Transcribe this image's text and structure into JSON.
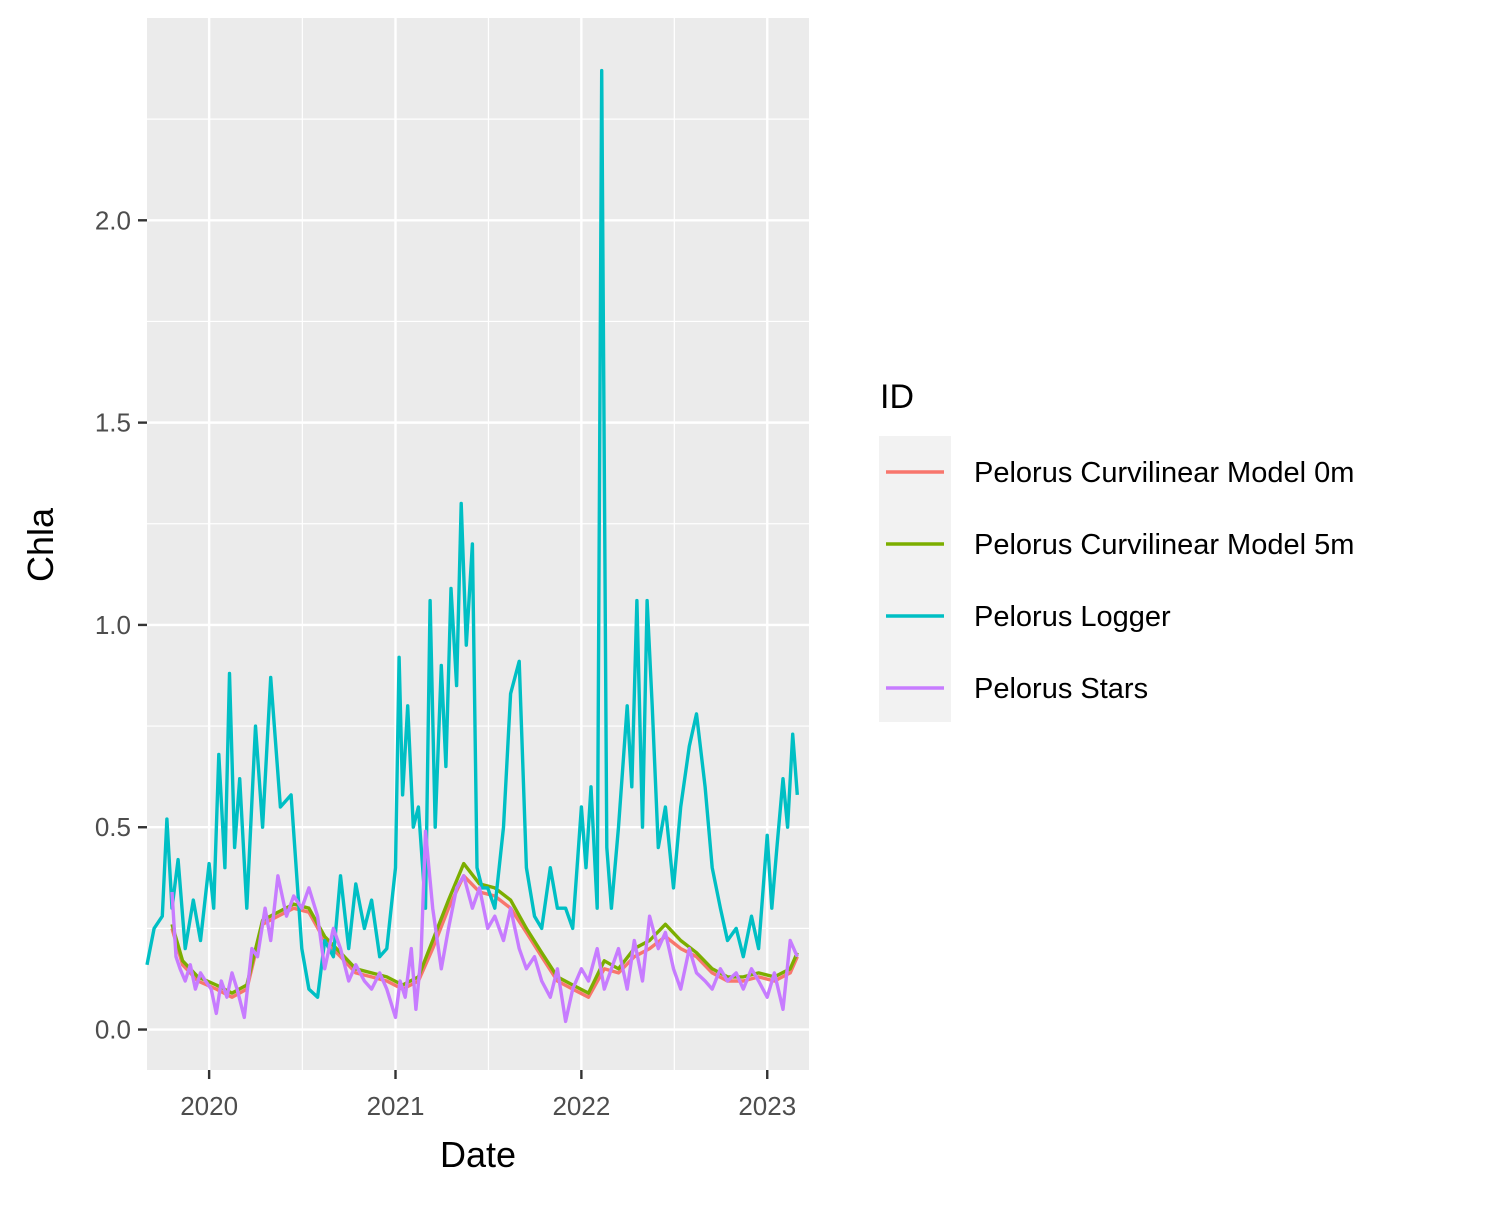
{
  "chart_data": {
    "type": "line",
    "title": "",
    "xlabel": "Date",
    "ylabel": "Chla",
    "x_axis_type": "date",
    "xlim": [
      "2019-09-01",
      "2023-03-24"
    ],
    "ylim": [
      -0.1,
      2.5
    ],
    "x_ticks": [
      "2020-01-01",
      "2021-01-01",
      "2022-01-01",
      "2023-01-01"
    ],
    "x_tick_labels": [
      "2020",
      "2021",
      "2022",
      "2023"
    ],
    "y_ticks": [
      0.0,
      0.5,
      1.0,
      1.5,
      2.0
    ],
    "y_tick_labels": [
      "0.0",
      "0.5",
      "1.0",
      "1.5",
      "2.0"
    ],
    "grid": true,
    "background": "#ebebeb",
    "legend": {
      "title": "ID",
      "placement": "right"
    },
    "series": [
      {
        "name": "Pelorus Curvilinear Model 0m",
        "color": "#f8766d",
        "x": [
          "2019-10-20",
          "2019-11-10",
          "2019-12-10",
          "2020-01-15",
          "2020-02-15",
          "2020-03-15",
          "2020-04-15",
          "2020-05-15",
          "2020-06-15",
          "2020-07-15",
          "2020-08-15",
          "2020-09-15",
          "2020-10-15",
          "2020-11-15",
          "2020-12-15",
          "2021-01-15",
          "2021-02-15",
          "2021-03-15",
          "2021-04-15",
          "2021-05-15",
          "2021-06-15",
          "2021-07-15",
          "2021-08-15",
          "2021-09-15",
          "2021-10-15",
          "2021-11-15",
          "2021-12-15",
          "2022-01-15",
          "2022-02-15",
          "2022-03-15",
          "2022-04-15",
          "2022-05-15",
          "2022-06-15",
          "2022-07-15",
          "2022-08-15",
          "2022-09-15",
          "2022-10-15",
          "2022-11-15",
          "2022-12-15",
          "2023-01-15",
          "2023-02-15",
          "2023-03-01"
        ],
        "values": [
          0.25,
          0.16,
          0.12,
          0.1,
          0.08,
          0.1,
          0.26,
          0.28,
          0.3,
          0.29,
          0.22,
          0.18,
          0.14,
          0.13,
          0.12,
          0.1,
          0.12,
          0.2,
          0.3,
          0.38,
          0.34,
          0.33,
          0.3,
          0.24,
          0.18,
          0.12,
          0.1,
          0.08,
          0.15,
          0.14,
          0.18,
          0.2,
          0.23,
          0.2,
          0.18,
          0.14,
          0.12,
          0.12,
          0.13,
          0.12,
          0.14,
          0.18
        ]
      },
      {
        "name": "Pelorus Curvilinear Model 5m",
        "color": "#7cae00",
        "x": [
          "2019-10-20",
          "2019-11-10",
          "2019-12-10",
          "2020-01-15",
          "2020-02-15",
          "2020-03-15",
          "2020-04-15",
          "2020-05-15",
          "2020-06-15",
          "2020-07-15",
          "2020-08-15",
          "2020-09-15",
          "2020-10-15",
          "2020-11-15",
          "2020-12-15",
          "2021-01-15",
          "2021-02-15",
          "2021-03-15",
          "2021-04-15",
          "2021-05-15",
          "2021-06-15",
          "2021-07-15",
          "2021-08-15",
          "2021-09-15",
          "2021-10-15",
          "2021-11-15",
          "2021-12-15",
          "2022-01-15",
          "2022-02-15",
          "2022-03-15",
          "2022-04-15",
          "2022-05-15",
          "2022-06-15",
          "2022-07-15",
          "2022-08-15",
          "2022-09-15",
          "2022-10-15",
          "2022-11-15",
          "2022-12-15",
          "2023-01-15",
          "2023-02-15",
          "2023-03-01"
        ],
        "values": [
          0.26,
          0.17,
          0.13,
          0.11,
          0.09,
          0.11,
          0.27,
          0.29,
          0.31,
          0.3,
          0.23,
          0.19,
          0.15,
          0.14,
          0.13,
          0.11,
          0.13,
          0.22,
          0.32,
          0.41,
          0.36,
          0.35,
          0.32,
          0.25,
          0.19,
          0.13,
          0.11,
          0.09,
          0.17,
          0.15,
          0.2,
          0.22,
          0.26,
          0.22,
          0.19,
          0.15,
          0.13,
          0.13,
          0.14,
          0.13,
          0.15,
          0.19
        ]
      },
      {
        "name": "Pelorus Logger",
        "color": "#00bfc4",
        "x": [
          "2019-09-01",
          "2019-09-15",
          "2019-10-01",
          "2019-10-10",
          "2019-10-20",
          "2019-11-01",
          "2019-11-15",
          "2019-12-01",
          "2019-12-15",
          "2020-01-01",
          "2020-01-10",
          "2020-01-20",
          "2020-02-01",
          "2020-02-10",
          "2020-02-20",
          "2020-03-01",
          "2020-03-15",
          "2020-04-01",
          "2020-04-15",
          "2020-05-01",
          "2020-05-20",
          "2020-06-10",
          "2020-07-01",
          "2020-07-15",
          "2020-08-01",
          "2020-08-15",
          "2020-09-01",
          "2020-09-15",
          "2020-10-01",
          "2020-10-15",
          "2020-11-01",
          "2020-11-15",
          "2020-12-01",
          "2020-12-15",
          "2021-01-01",
          "2021-01-08",
          "2021-01-15",
          "2021-01-25",
          "2021-02-05",
          "2021-02-15",
          "2021-03-01",
          "2021-03-10",
          "2021-03-20",
          "2021-04-01",
          "2021-04-10",
          "2021-04-20",
          "2021-05-01",
          "2021-05-10",
          "2021-05-20",
          "2021-06-01",
          "2021-06-10",
          "2021-06-20",
          "2021-07-01",
          "2021-07-15",
          "2021-08-01",
          "2021-08-15",
          "2021-09-01",
          "2021-09-15",
          "2021-10-01",
          "2021-10-15",
          "2021-11-01",
          "2021-11-15",
          "2021-12-01",
          "2021-12-15",
          "2022-01-01",
          "2022-01-10",
          "2022-01-20",
          "2022-02-01",
          "2022-02-10",
          "2022-02-20",
          "2022-03-01",
          "2022-03-15",
          "2022-04-01",
          "2022-04-10",
          "2022-04-20",
          "2022-05-01",
          "2022-05-10",
          "2022-05-20",
          "2022-06-01",
          "2022-06-15",
          "2022-07-01",
          "2022-07-15",
          "2022-08-01",
          "2022-08-15",
          "2022-09-01",
          "2022-09-15",
          "2022-10-01",
          "2022-10-15",
          "2022-11-01",
          "2022-11-15",
          "2022-12-01",
          "2022-12-15",
          "2023-01-01",
          "2023-01-10",
          "2023-01-20",
          "2023-02-01",
          "2023-02-10",
          "2023-02-20",
          "2023-03-01"
        ],
        "values": [
          0.16,
          0.25,
          0.28,
          0.52,
          0.3,
          0.42,
          0.2,
          0.32,
          0.22,
          0.41,
          0.3,
          0.68,
          0.4,
          0.88,
          0.45,
          0.62,
          0.3,
          0.75,
          0.5,
          0.87,
          0.55,
          0.58,
          0.2,
          0.1,
          0.08,
          0.22,
          0.18,
          0.38,
          0.2,
          0.36,
          0.25,
          0.32,
          0.18,
          0.2,
          0.4,
          0.92,
          0.58,
          0.8,
          0.5,
          0.55,
          0.3,
          1.06,
          0.5,
          0.9,
          0.65,
          1.09,
          0.85,
          1.3,
          0.95,
          1.2,
          0.4,
          0.35,
          0.35,
          0.3,
          0.5,
          0.83,
          0.91,
          0.4,
          0.28,
          0.25,
          0.4,
          0.3,
          0.3,
          0.25,
          0.55,
          0.4,
          0.6,
          0.3,
          2.37,
          0.45,
          0.3,
          0.5,
          0.8,
          0.6,
          1.06,
          0.5,
          1.06,
          0.8,
          0.45,
          0.55,
          0.35,
          0.55,
          0.7,
          0.78,
          0.6,
          0.4,
          0.3,
          0.22,
          0.25,
          0.18,
          0.28,
          0.2,
          0.48,
          0.3,
          0.45,
          0.62,
          0.5,
          0.73,
          0.58
        ]
      },
      {
        "name": "Pelorus Stars",
        "color": "#c77cff",
        "x": [
          "2019-10-20",
          "2019-10-28",
          "2019-11-05",
          "2019-11-15",
          "2019-11-25",
          "2019-12-05",
          "2019-12-15",
          "2019-12-25",
          "2020-01-05",
          "2020-01-15",
          "2020-01-25",
          "2020-02-05",
          "2020-02-15",
          "2020-02-25",
          "2020-03-10",
          "2020-03-25",
          "2020-04-05",
          "2020-04-20",
          "2020-05-01",
          "2020-05-15",
          "2020-06-01",
          "2020-06-15",
          "2020-07-01",
          "2020-07-15",
          "2020-08-01",
          "2020-08-15",
          "2020-09-01",
          "2020-09-15",
          "2020-10-01",
          "2020-10-15",
          "2020-11-01",
          "2020-11-15",
          "2020-12-01",
          "2020-12-15",
          "2021-01-01",
          "2021-01-10",
          "2021-01-20",
          "2021-02-01",
          "2021-02-10",
          "2021-02-20",
          "2021-03-01",
          "2021-03-15",
          "2021-04-01",
          "2021-04-15",
          "2021-05-01",
          "2021-05-15",
          "2021-06-01",
          "2021-06-15",
          "2021-07-01",
          "2021-07-15",
          "2021-08-01",
          "2021-08-15",
          "2021-09-01",
          "2021-09-15",
          "2021-10-01",
          "2021-10-15",
          "2021-11-01",
          "2021-11-15",
          "2021-12-01",
          "2021-12-15",
          "2022-01-01",
          "2022-01-15",
          "2022-02-01",
          "2022-02-15",
          "2022-03-01",
          "2022-03-15",
          "2022-04-01",
          "2022-04-15",
          "2022-05-01",
          "2022-05-15",
          "2022-06-01",
          "2022-06-15",
          "2022-07-01",
          "2022-07-15",
          "2022-08-01",
          "2022-08-15",
          "2022-09-01",
          "2022-09-15",
          "2022-10-01",
          "2022-10-15",
          "2022-11-01",
          "2022-11-15",
          "2022-12-01",
          "2022-12-15",
          "2023-01-01",
          "2023-01-15",
          "2023-02-01",
          "2023-02-15",
          "2023-03-01"
        ],
        "values": [
          0.34,
          0.18,
          0.15,
          0.12,
          0.16,
          0.1,
          0.14,
          0.12,
          0.1,
          0.04,
          0.12,
          0.08,
          0.14,
          0.1,
          0.03,
          0.2,
          0.18,
          0.3,
          0.22,
          0.38,
          0.28,
          0.33,
          0.3,
          0.35,
          0.28,
          0.15,
          0.25,
          0.2,
          0.12,
          0.16,
          0.12,
          0.1,
          0.14,
          0.1,
          0.03,
          0.12,
          0.08,
          0.2,
          0.05,
          0.18,
          0.49,
          0.3,
          0.15,
          0.25,
          0.35,
          0.38,
          0.3,
          0.35,
          0.25,
          0.28,
          0.22,
          0.3,
          0.2,
          0.15,
          0.18,
          0.12,
          0.08,
          0.15,
          0.02,
          0.1,
          0.15,
          0.12,
          0.2,
          0.1,
          0.15,
          0.2,
          0.1,
          0.22,
          0.12,
          0.28,
          0.2,
          0.24,
          0.15,
          0.1,
          0.2,
          0.14,
          0.12,
          0.1,
          0.15,
          0.12,
          0.14,
          0.1,
          0.15,
          0.12,
          0.08,
          0.14,
          0.05,
          0.22,
          0.18
        ]
      }
    ]
  }
}
